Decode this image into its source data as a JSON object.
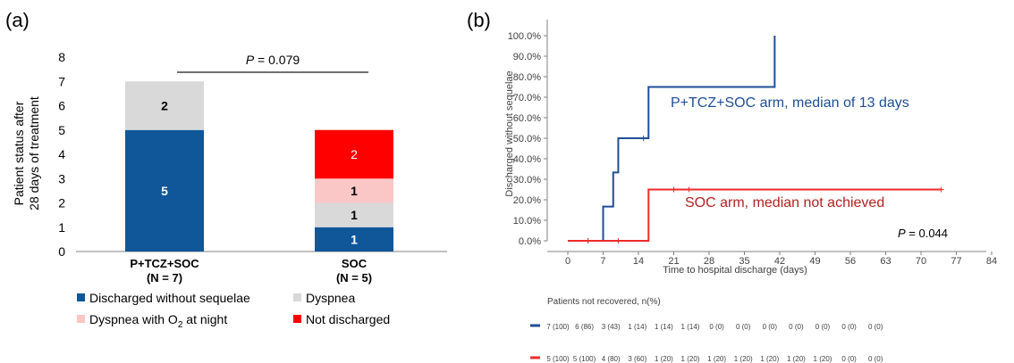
{
  "colors": {
    "discharged": "#0f5799",
    "dyspnea": "#d9d9d9",
    "dyspnea_o2": "#fbc6c6",
    "not_discharged": "#ff0000",
    "ptcz_line": "#1f4e96",
    "soc_line": "#ee2b2b",
    "soc_annotation": "#b22222",
    "axis": "#808080"
  },
  "chart_data": [
    {
      "type": "bar",
      "stacked": true,
      "panel_label": "(a)",
      "ylabel_line1": "Patient status after",
      "ylabel_line2": "28 days of treatment",
      "ylim": [
        0,
        8
      ],
      "yticks": [
        "0",
        "1",
        "2",
        "3",
        "4",
        "5",
        "6",
        "7",
        "8"
      ],
      "categories": [
        {
          "name": "P+TCZ+SOC",
          "n": "(N = 7)"
        },
        {
          "name": "SOC",
          "n": "(N = 5)"
        }
      ],
      "series": [
        {
          "name": "Discharged without sequelae",
          "values": [
            5,
            1
          ],
          "labels": [
            "5",
            "1"
          ]
        },
        {
          "name": "Dyspnea",
          "values": [
            2,
            1
          ],
          "labels": [
            "2",
            "1"
          ]
        },
        {
          "name": "Dyspnea with O",
          "name_sub": "2",
          "name_suffix": " at night",
          "values": [
            0,
            1
          ],
          "labels": [
            "",
            "1"
          ]
        },
        {
          "name": "Not discharged",
          "values": [
            0,
            2
          ],
          "labels": [
            "",
            "2"
          ]
        }
      ],
      "p_value": {
        "prefix": "P",
        "text": " = 0.079"
      }
    },
    {
      "type": "line",
      "step": true,
      "panel_label": "(b)",
      "ylabel": "Discharged without sequelae",
      "xlabel": "Time to hospital discharge (days)",
      "xlim": [
        -3,
        91
      ],
      "ylim": [
        0,
        100
      ],
      "xticks": [
        "0",
        "7",
        "14",
        "21",
        "28",
        "35",
        "42",
        "49",
        "56",
        "63",
        "70",
        "77",
        "84"
      ],
      "yticks": [
        "0.0%",
        "10.0%",
        "20.0%",
        "30.0%",
        "40.0%",
        "50.0%",
        "60.0%",
        "70.0%",
        "80.0%",
        "90.0%",
        "100.0%"
      ],
      "series": [
        {
          "name": "P+TCZ+SOC arm, median of 13 days",
          "x": [
            0,
            7,
            7,
            9,
            9,
            10,
            10,
            16,
            16,
            41,
            41
          ],
          "y": [
            0,
            0,
            16.7,
            16.7,
            33.3,
            33.3,
            50,
            50,
            75,
            75,
            100
          ],
          "censored_x": [
            4,
            15
          ]
        },
        {
          "name": "SOC arm, median not achieved",
          "x": [
            0,
            16,
            16,
            74
          ],
          "y": [
            0,
            0,
            25,
            25
          ],
          "censored_x": [
            4,
            10,
            21,
            24,
            74
          ]
        }
      ],
      "p_value": {
        "prefix": "P",
        "text": " = 0.044"
      },
      "risk_table": {
        "title": "Patients not recovered, n(%)",
        "rows": [
          [
            "7 (100)",
            "6 (86)",
            "3 (43)",
            "1 (14)",
            "1 (14)",
            "1 (14)",
            "0 (0)",
            "0 (0)",
            "0 (0)",
            "0 (0)",
            "0 (0)",
            "0 (0)",
            "0 (0)"
          ],
          [
            "5 (100)",
            "5 (100)",
            "4 (80)",
            "3 (60)",
            "1 (20)",
            "1 (20)",
            "1 (20)",
            "1 (20)",
            "1 (20)",
            "1 (20)",
            "1 (20)",
            "0 (0)",
            "0 (0)"
          ]
        ]
      }
    }
  ]
}
